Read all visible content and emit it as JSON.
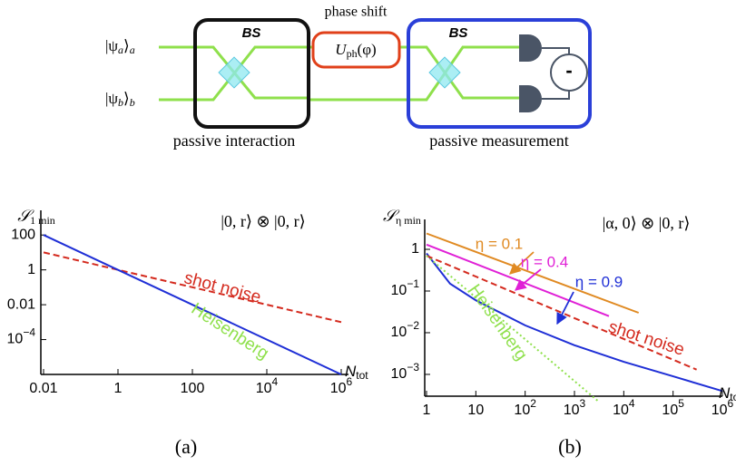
{
  "diagram": {
    "state_a": {
      "ket": "|ψ",
      "sub": "a",
      "close": "⟩",
      "index": "a"
    },
    "state_b": {
      "ket": "|ψ",
      "sub": "b",
      "close": "⟩",
      "index": "b"
    },
    "bs_left": "BS",
    "bs_right": "BS",
    "phase_label": "phase shift",
    "phase_op": {
      "main": "U",
      "sub": "ph",
      "arg": "(φ)"
    },
    "detector_sign": "-",
    "left_caption": "passive interaction",
    "right_caption": "passive measurement"
  },
  "chart_data": [
    {
      "type": "line",
      "caption": "(a)",
      "x_label": {
        "text": "N",
        "subscript": "tot"
      },
      "y_label": {
        "text": "𝒮",
        "subscript": "1 min"
      },
      "annotation": "|0, r⟩ ⊗ |0, r⟩",
      "xscale": "log",
      "yscale": "log",
      "xlim": [
        0.01,
        1000000
      ],
      "ylim": [
        1e-06,
        1000
      ],
      "xticks": [
        0.01,
        1,
        100,
        {
          "value": 10000,
          "label": "10",
          "exponent": "4"
        },
        {
          "value": 1000000,
          "label": "10",
          "exponent": "6"
        }
      ],
      "yticks": [
        100,
        1,
        0.01,
        {
          "value": 0.0001,
          "label": "10",
          "exponent": "−4"
        }
      ],
      "series": [
        {
          "name": "shot noise",
          "color": "#d42a1e",
          "dash": "dashed",
          "x": [
            0.01,
            1000000
          ],
          "values": [
            10,
            0.001
          ]
        },
        {
          "name": "Heisenberg",
          "color": "#1f2fd6",
          "label_color": "#8fe04c",
          "dash": "solid",
          "x": [
            0.01,
            1000000
          ],
          "values": [
            100,
            1e-06
          ]
        }
      ]
    },
    {
      "type": "line",
      "caption": "(b)",
      "x_label": {
        "text": "N",
        "subscript": "tot"
      },
      "y_label": {
        "text": "𝒮",
        "subscript": "η min"
      },
      "annotation": "|α, 0⟩ ⊗ |0, r⟩",
      "xscale": "log",
      "yscale": "log",
      "xlim": [
        1,
        1000000
      ],
      "ylim": [
        0.0003,
        3.5
      ],
      "xticks": [
        1,
        10,
        {
          "value": 100,
          "label": "10",
          "exponent": "2"
        },
        {
          "value": 1000,
          "label": "10",
          "exponent": "3"
        },
        {
          "value": 10000,
          "label": "10",
          "exponent": "4"
        },
        {
          "value": 100000,
          "label": "10",
          "exponent": "5"
        },
        {
          "value": 1000000,
          "label": "10",
          "exponent": "6"
        }
      ],
      "yticks": [
        1,
        {
          "value": 0.1,
          "label": "10",
          "exponent": "−1"
        },
        {
          "value": 0.01,
          "label": "10",
          "exponent": "−2"
        },
        {
          "value": 0.001,
          "label": "10",
          "exponent": "−3"
        }
      ],
      "series": [
        {
          "name": "η = 0.1",
          "color": "#e08a22",
          "dash": "solid",
          "x": [
            1,
            20000
          ],
          "values": [
            2.4,
            0.03
          ]
        },
        {
          "name": "η = 0.4",
          "color": "#e020d6",
          "dash": "solid",
          "x": [
            1,
            5000
          ],
          "values": [
            1.3,
            0.025
          ]
        },
        {
          "name": "η = 0.9",
          "color": "#1f2fd6",
          "dash": "solid",
          "x": [
            1,
            3,
            10,
            100,
            1000,
            10000,
            100000,
            1000000
          ],
          "values": [
            0.8,
            0.15,
            0.06,
            0.015,
            0.005,
            0.002,
            0.0009,
            0.0004
          ]
        },
        {
          "name": "shot noise",
          "color": "#d42a1e",
          "dash": "dashed",
          "x": [
            1,
            300000
          ],
          "values": [
            0.7,
            0.0013
          ]
        },
        {
          "name": "Heisenberg",
          "color": "#8fe04c",
          "dash": "dotted",
          "x": [
            1,
            3000
          ],
          "values": [
            0.7,
            0.00023
          ]
        }
      ]
    }
  ]
}
